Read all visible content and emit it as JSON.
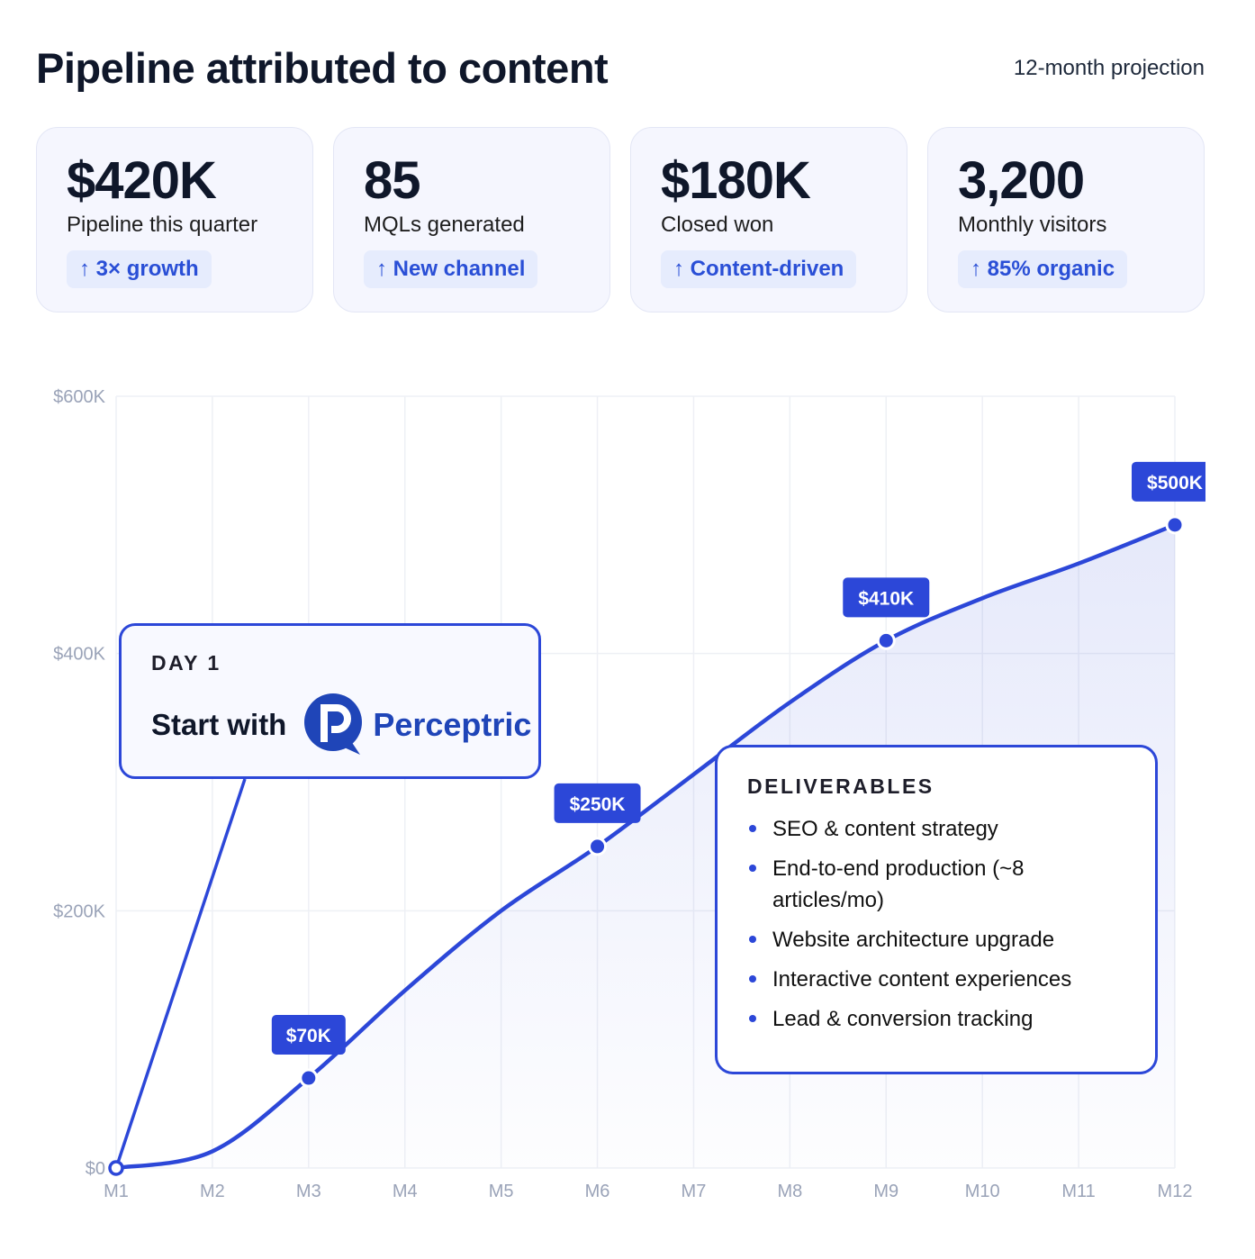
{
  "header": {
    "title": "Pipeline attributed to content",
    "subtitle": "12-month projection"
  },
  "cards": [
    {
      "value": "$420K",
      "label": "Pipeline this quarter",
      "badge": "↑ 3× growth"
    },
    {
      "value": "85",
      "label": "MQLs generated",
      "badge": "↑ New channel"
    },
    {
      "value": "$180K",
      "label": "Closed won",
      "badge": "↑ Content-driven"
    },
    {
      "value": "3,200",
      "label": "Monthly visitors",
      "badge": "↑ 85% organic"
    }
  ],
  "day1": {
    "kicker": "DAY 1",
    "text": "Start with",
    "logo": "Perceptric"
  },
  "deliverables": {
    "title": "DELIVERABLES",
    "items": [
      "SEO & content strategy",
      "End-to-end production (~8 articles/mo)",
      "Website architecture upgrade",
      "Interactive content experiences",
      "Lead & conversion tracking"
    ]
  },
  "chart_data": {
    "type": "area",
    "categories": [
      "M1",
      "M2",
      "M3",
      "M4",
      "M5",
      "M6",
      "M7",
      "M8",
      "M9",
      "M10",
      "M11",
      "M12"
    ],
    "values": [
      0,
      13,
      70,
      138,
      200,
      250,
      306,
      362,
      410,
      443,
      470,
      500
    ],
    "labeled_points": {
      "2": "$70K",
      "5": "$250K",
      "8": "$410K",
      "11": "$500K"
    },
    "yticks": [
      {
        "v": 0,
        "label": "$0"
      },
      {
        "v": 200,
        "label": "$200K"
      },
      {
        "v": 400,
        "label": "$400K"
      },
      {
        "v": 600,
        "label": "$600K"
      }
    ],
    "ylim": [
      0,
      600
    ],
    "grid": true,
    "colors": {
      "line": "#2c47d8",
      "label_bg": "#2c47d8",
      "grid": "#eef0f5",
      "tick": "#9aa3b8"
    }
  }
}
